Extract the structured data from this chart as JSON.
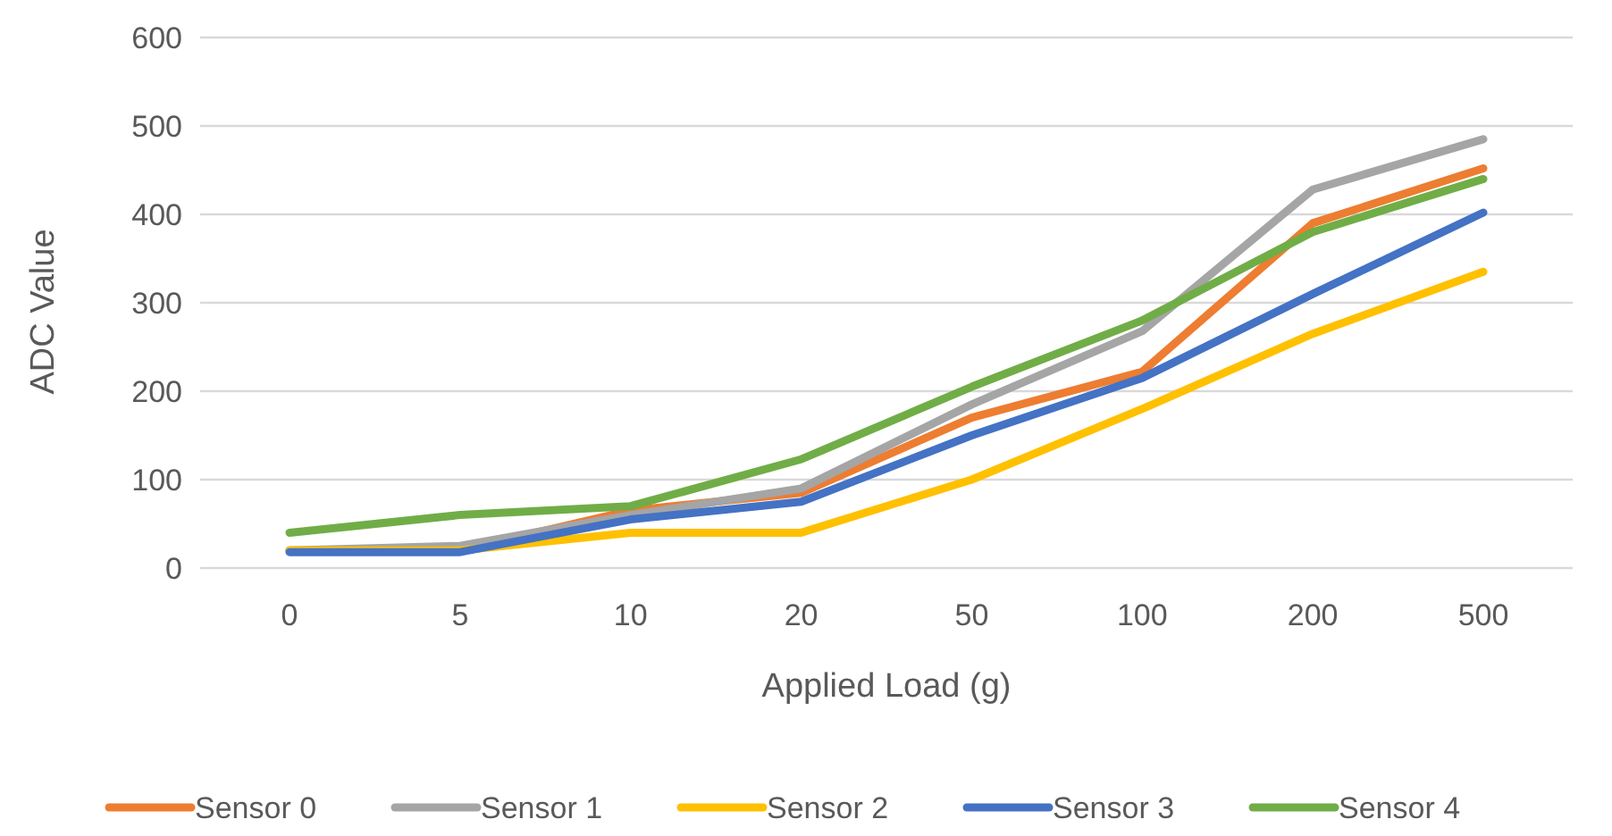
{
  "chart_data": {
    "type": "line",
    "xlabel": "Applied Load (g)",
    "ylabel": "ADC Value",
    "categories": [
      "0",
      "5",
      "10",
      "20",
      "50",
      "100",
      "200",
      "500"
    ],
    "series": [
      {
        "name": "Sensor 0",
        "color": "#ed7d31",
        "values": [
          20,
          20,
          65,
          85,
          170,
          222,
          390,
          452
        ]
      },
      {
        "name": "Sensor 1",
        "color": "#a5a5a5",
        "values": [
          20,
          25,
          60,
          90,
          185,
          268,
          428,
          485
        ]
      },
      {
        "name": "Sensor 2",
        "color": "#ffc000",
        "values": [
          20,
          20,
          40,
          40,
          100,
          180,
          265,
          335
        ]
      },
      {
        "name": "Sensor 3",
        "color": "#4472c4",
        "values": [
          18,
          18,
          55,
          75,
          150,
          215,
          310,
          402
        ]
      },
      {
        "name": "Sensor 4",
        "color": "#70ad47",
        "values": [
          40,
          60,
          70,
          123,
          205,
          280,
          380,
          440
        ]
      }
    ],
    "ylim": [
      0,
      600
    ],
    "yticks": [
      0,
      100,
      200,
      300,
      400,
      500,
      600
    ],
    "grid": "y",
    "legend": "bottom",
    "marker": "none",
    "line_style": "solid"
  }
}
